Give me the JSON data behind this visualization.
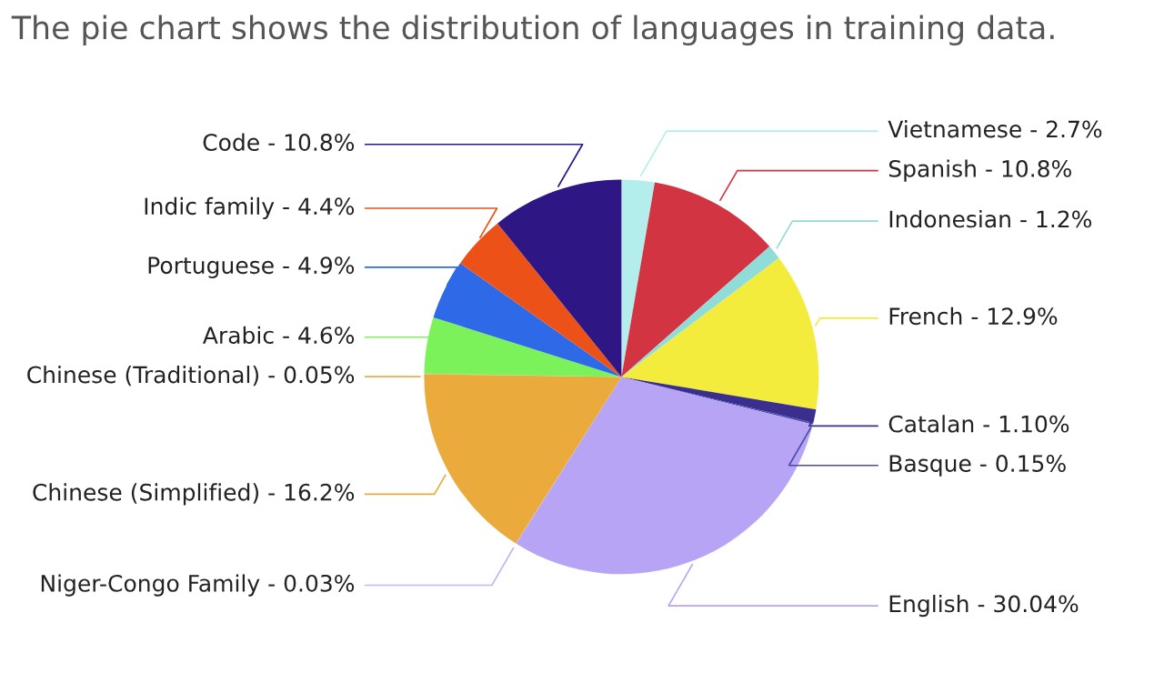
{
  "chart_data": {
    "type": "pie",
    "title": "The pie chart shows the distribution of languages in training data.",
    "categories": [
      "Vietnamese",
      "Spanish",
      "Indonesian",
      "French",
      "Catalan",
      "Basque",
      "English",
      "Niger-Congo Family",
      "Chinese (Simplified)",
      "Chinese (Traditional)",
      "Arabic",
      "Portuguese",
      "Indic family",
      "Code"
    ],
    "values": [
      2.7,
      10.8,
      1.2,
      12.9,
      1.1,
      0.15,
      30.04,
      0.03,
      16.2,
      0.05,
      4.6,
      4.9,
      4.4,
      10.8
    ],
    "value_labels": [
      "2.7%",
      "10.8%",
      "1.2%",
      "12.9%",
      "1.10%",
      "0.15%",
      "30.04%",
      "0.03%",
      "16.2%",
      "0.05%",
      "4.6%",
      "4.9%",
      "4.4%",
      "10.8%"
    ],
    "colors": [
      "#b4eeec",
      "#d23441",
      "#8fdcd8",
      "#f4ec3c",
      "#3a2f8e",
      "#4a4aa8",
      "#b8a4f4",
      "#c8b4f0",
      "#eaaa3c",
      "#e9b04a",
      "#7cf25a",
      "#2e6ae8",
      "#ec5218",
      "#2e1784"
    ]
  }
}
